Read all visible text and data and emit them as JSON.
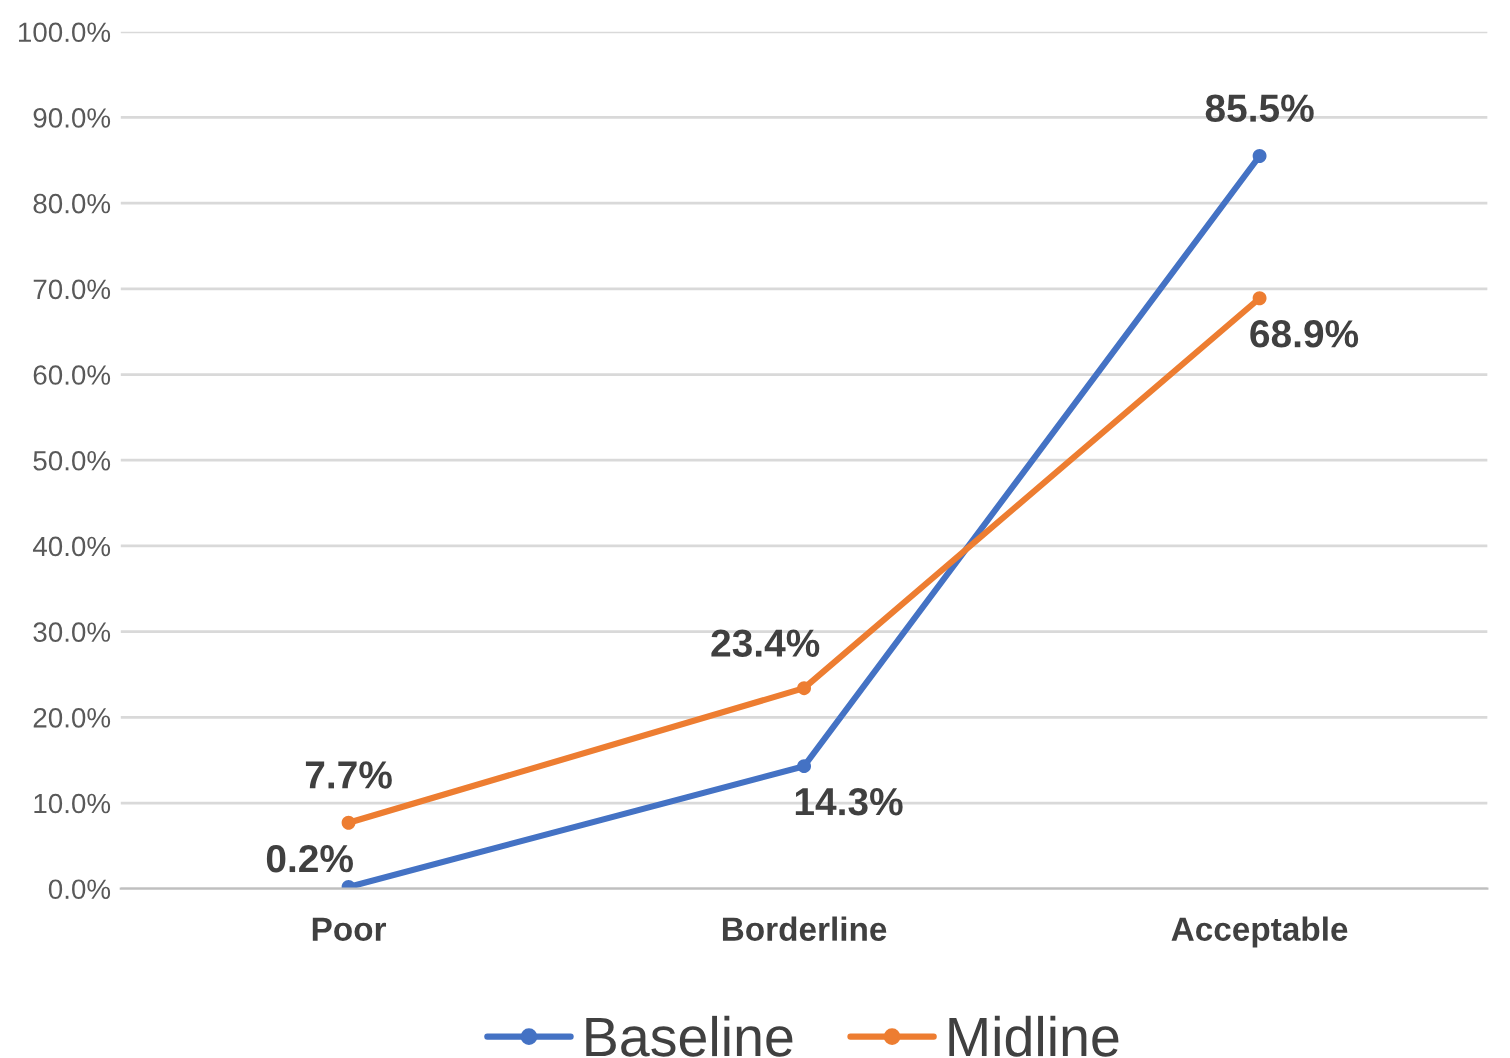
{
  "chart_data": {
    "type": "line",
    "categories": [
      "Poor",
      "Borderline",
      "Acceptable"
    ],
    "series": [
      {
        "name": "Baseline",
        "color": "#4472c4",
        "values": [
          0.2,
          14.3,
          85.5
        ],
        "value_labels": [
          "0.2%",
          "14.3%",
          "85.5%"
        ]
      },
      {
        "name": "Midline",
        "color": "#ed7d31",
        "values": [
          7.7,
          23.4,
          68.9
        ],
        "value_labels": [
          "7.7%",
          "23.4%",
          "68.9%"
        ]
      }
    ],
    "ylim": [
      0,
      100
    ],
    "yticks": [
      {
        "value": 0,
        "label": "0.0%"
      },
      {
        "value": 10,
        "label": "10.0%"
      },
      {
        "value": 20,
        "label": "20.0%"
      },
      {
        "value": 30,
        "label": "30.0%"
      },
      {
        "value": 40,
        "label": "40.0%"
      },
      {
        "value": 50,
        "label": "50.0%"
      },
      {
        "value": 60,
        "label": "60.0%"
      },
      {
        "value": 70,
        "label": "70.0%"
      },
      {
        "value": 80,
        "label": "80.0%"
      },
      {
        "value": 90,
        "label": "90.0%"
      },
      {
        "value": 100,
        "label": "100.0%"
      }
    ],
    "grid": "y",
    "legend": "bottom",
    "marker": "circle",
    "line_style": "solid"
  }
}
